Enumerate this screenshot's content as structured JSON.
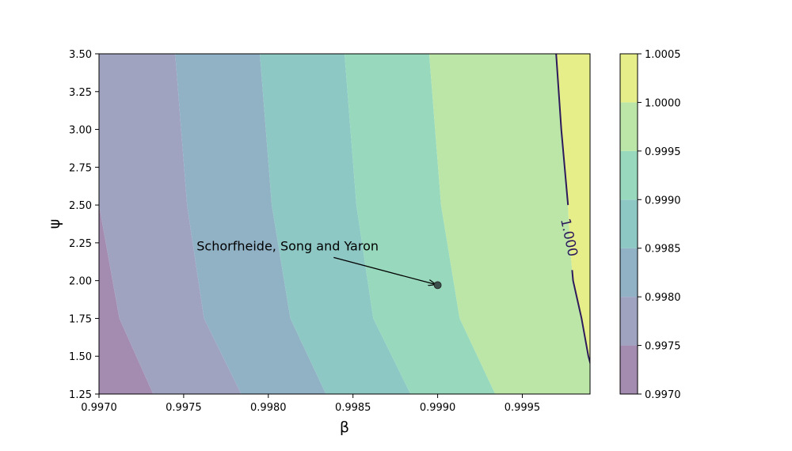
{
  "chart_data": {
    "type": "contour",
    "xlabel": "β",
    "ylabel": "ψ",
    "xlim": [
      0.997,
      0.9999
    ],
    "ylim": [
      1.25,
      3.5
    ],
    "x_ticks": [
      "0.9970",
      "0.9975",
      "0.9980",
      "0.9985",
      "0.9990",
      "0.9995"
    ],
    "x_tick_values": [
      0.997,
      0.9975,
      0.998,
      0.9985,
      0.999,
      0.9995
    ],
    "y_ticks": [
      "1.25",
      "1.50",
      "1.75",
      "2.00",
      "2.25",
      "2.50",
      "2.75",
      "3.00",
      "3.25",
      "3.50"
    ],
    "y_tick_values": [
      1.25,
      1.5,
      1.75,
      2.0,
      2.25,
      2.5,
      2.75,
      3.0,
      3.25,
      3.5
    ],
    "levels": [
      0.997,
      0.9975,
      0.998,
      0.9985,
      0.999,
      0.9995,
      1.0,
      1.0005
    ],
    "level_colors": [
      "#a48bb0",
      "#9fa3c0",
      "#91b1c5",
      "#8ec8c4",
      "#98d9bd",
      "#bbe6a8",
      "#e6ee8a"
    ],
    "colorbar_ticks": [
      "0.9970",
      "0.9975",
      "0.9980",
      "0.9985",
      "0.9990",
      "0.9995",
      "1.0000",
      "1.0005"
    ],
    "boundaries": [
      {
        "level": 0.9975,
        "points": [
          [
            0.997,
            2.5
          ],
          [
            0.99712,
            1.75
          ],
          [
            0.99732,
            1.25
          ]
        ]
      },
      {
        "level": 0.998,
        "points": [
          [
            0.99745,
            3.5
          ],
          [
            0.99752,
            2.5
          ],
          [
            0.99762,
            1.75
          ],
          [
            0.99784,
            1.25
          ]
        ]
      },
      {
        "level": 0.9985,
        "points": [
          [
            0.99795,
            3.5
          ],
          [
            0.99802,
            2.5
          ],
          [
            0.99813,
            1.75
          ],
          [
            0.99834,
            1.25
          ]
        ]
      },
      {
        "level": 0.999,
        "points": [
          [
            0.99845,
            3.5
          ],
          [
            0.99852,
            2.5
          ],
          [
            0.99862,
            1.75
          ],
          [
            0.99884,
            1.25
          ]
        ]
      },
      {
        "level": 0.9995,
        "points": [
          [
            0.99895,
            3.5
          ],
          [
            0.99902,
            2.5
          ],
          [
            0.99913,
            1.75
          ],
          [
            0.99934,
            1.25
          ]
        ]
      },
      {
        "level": 1.0,
        "points": [
          [
            0.9997,
            3.5
          ],
          [
            0.99973,
            3.0
          ],
          [
            0.99977,
            2.5
          ],
          [
            0.99978,
            2.25
          ],
          [
            0.9998,
            2.0
          ],
          [
            0.99985,
            1.75
          ],
          [
            0.99989,
            1.5
          ],
          [
            0.99995,
            1.25
          ]
        ]
      }
    ],
    "contour_line": {
      "level": 1.0,
      "label": "1.000",
      "color": "#2d1a5c"
    },
    "annotation": {
      "text": "Schorfheide, Song and Yaron",
      "point": {
        "beta": 0.999,
        "psi": 1.97
      },
      "text_pos": {
        "beta": 0.9976,
        "psi": 2.2
      }
    }
  }
}
